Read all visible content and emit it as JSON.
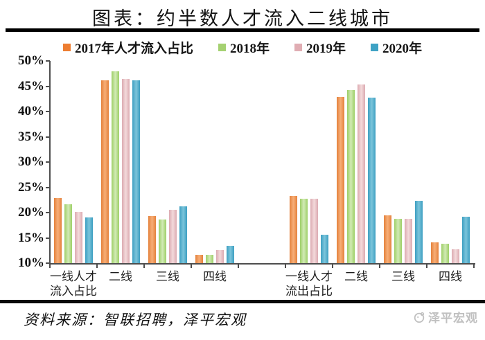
{
  "title": "图表：约半数人才流入二线城市",
  "source": "资料来源：智联招聘，泽平宏观",
  "watermark": "泽平宏观",
  "chart_data": {
    "type": "bar",
    "title": "图表：约半数人才流入二线城市",
    "categories": [
      "一线人才\n流入占比",
      "二线",
      "三线",
      "四线",
      "",
      "一线人才\n流出占比",
      "二线",
      "三线",
      "四线"
    ],
    "series": [
      {
        "name": "2017年人才流入占比",
        "color": "#ed7d31",
        "color_edge": "#e4813b",
        "color_mid": "#f7ae78",
        "values": [
          22.9,
          46.2,
          19.3,
          11.6,
          null,
          23.3,
          42.9,
          19.5,
          14.1
        ]
      },
      {
        "name": "2018年",
        "color": "#a5d171",
        "color_edge": "#9dcf67",
        "color_mid": "#d2eab5",
        "values": [
          21.7,
          47.9,
          18.6,
          11.6,
          null,
          22.7,
          44.2,
          18.8,
          13.9
        ]
      },
      {
        "name": "2019年",
        "color": "#e0adb3",
        "color_edge": "#dcaab1",
        "color_mid": "#f3dadb",
        "values": [
          20.2,
          46.4,
          20.6,
          12.6,
          null,
          22.8,
          45.3,
          18.8,
          12.7
        ]
      },
      {
        "name": "2020年",
        "color": "#3ea2c4",
        "color_edge": "#3d9fc1",
        "color_mid": "#7cc5db",
        "values": [
          19.1,
          46.1,
          21.3,
          13.4,
          null,
          15.6,
          42.7,
          22.3,
          19.2
        ]
      }
    ],
    "ylabel": "",
    "xlabel": "",
    "ylim": [
      10,
      50
    ],
    "yticks": [
      10,
      15,
      20,
      25,
      30,
      35,
      40,
      45,
      50
    ],
    "ytick_suffix": "%",
    "grid": false,
    "legend_position": "top"
  }
}
